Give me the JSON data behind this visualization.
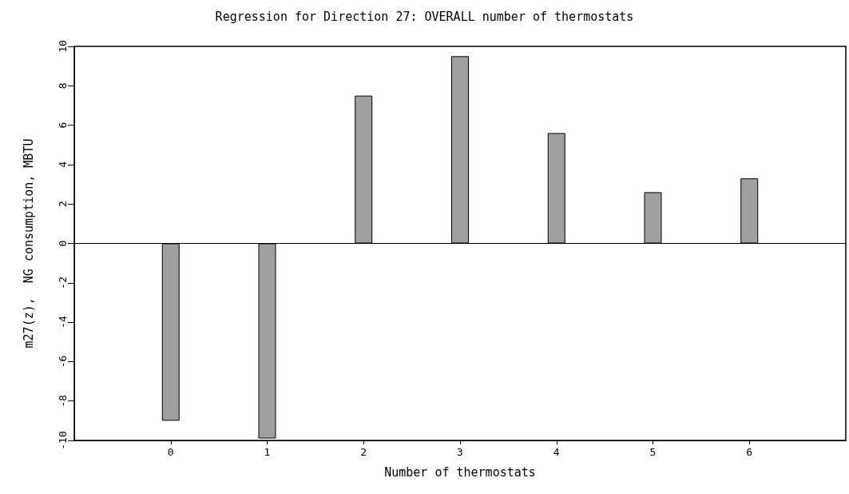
{
  "chart_data": {
    "type": "bar",
    "title": "Regression for Direction 27: OVERALL number of thermostats",
    "xlabel": "Number of thermostats",
    "ylabel": "m27(z),  NG consumption, MBTU",
    "x": [
      0,
      1,
      2,
      3,
      4,
      5,
      6
    ],
    "values": [
      -9.0,
      -9.9,
      7.5,
      9.5,
      5.6,
      2.6,
      3.3
    ],
    "color": "#a0a0a0",
    "xlim": [
      -1,
      7
    ],
    "xticks": [
      0,
      1,
      2,
      3,
      4,
      5,
      6
    ],
    "ylim": [
      -10,
      10
    ],
    "yticks": [
      -10,
      -8,
      -6,
      -4,
      -2,
      0,
      2,
      4,
      6,
      8,
      10
    ],
    "ref_lines": [
      {
        "axis": "y",
        "value": 0,
        "color": "#000000"
      }
    ],
    "grid": false
  }
}
